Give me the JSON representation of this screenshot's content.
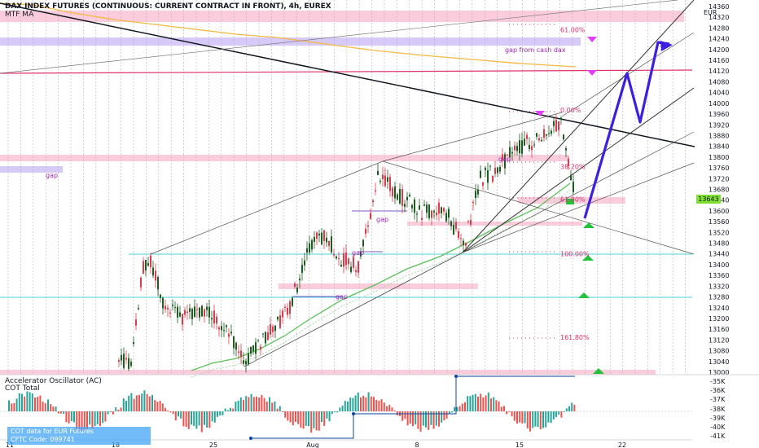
{
  "header": {
    "title": "DAX INDEX FUTURES (CONTINUOUS: CURRENT CONTRACT IN FRONT), 4h, EUREX",
    "indicator": "MTF MA"
  },
  "indicator_panel": {
    "label1": "Accelerator Oscillator (AC)",
    "label2": "COT Total",
    "cot_line1": "COT data for EUR Futures",
    "cot_line2": "CFTC Code: 099741"
  },
  "currency": "EUR",
  "last_price": "13643",
  "colors": {
    "bull": "#1b5e20",
    "bear": "#e0394b",
    "zone": "#f8bbd0",
    "gap_zone": "#c9b8f5",
    "cyan": "#4dd0e1",
    "arrow_blue": "#3d1fe0",
    "marker_magenta": "#e040fb",
    "marker_green": "#22c33a",
    "ma_green": "#5cc15a",
    "ma_orange": "#f5b942"
  },
  "chart_data": {
    "type": "candlestick",
    "y_axis_ticks": [
      13000,
      13040,
      13080,
      13120,
      13160,
      13200,
      13240,
      13280,
      13320,
      13360,
      13400,
      13440,
      13480,
      13520,
      13560,
      13600,
      13640,
      13680,
      13720,
      13760,
      13800,
      13840,
      13880,
      13920,
      13960,
      14000,
      14040,
      14080,
      14120,
      14160,
      14200,
      14240,
      14280,
      14320,
      14360
    ],
    "ylim": [
      13000,
      14360
    ],
    "x_axis_ticks": [
      "11",
      "18",
      "25",
      "Aug",
      "8",
      "15",
      "22"
    ],
    "fib_labels": [
      {
        "text": "61.00%",
        "price": 14273
      },
      {
        "text": "0.00%",
        "price": 13976
      },
      {
        "text": "38.20%",
        "price": 13765
      },
      {
        "text": "61.80%",
        "price": 13643
      },
      {
        "text": "100.00%",
        "price": 13440
      },
      {
        "text": "161.80%",
        "price": 13130
      }
    ],
    "annotations": [
      {
        "text": "gap from cash dax",
        "price": 14200
      },
      {
        "text": "gap",
        "price": 13770
      },
      {
        "text": "gap",
        "price": 13575
      },
      {
        "text": "gap",
        "price": 13445
      },
      {
        "text": "gap",
        "price": 13307
      },
      {
        "text": "gap",
        "price": 13767
      }
    ],
    "indicator_right_ticks": [
      "-35K",
      "-36K",
      "-37K",
      "-38K",
      "-39K",
      "-40K",
      "-41K"
    ]
  }
}
